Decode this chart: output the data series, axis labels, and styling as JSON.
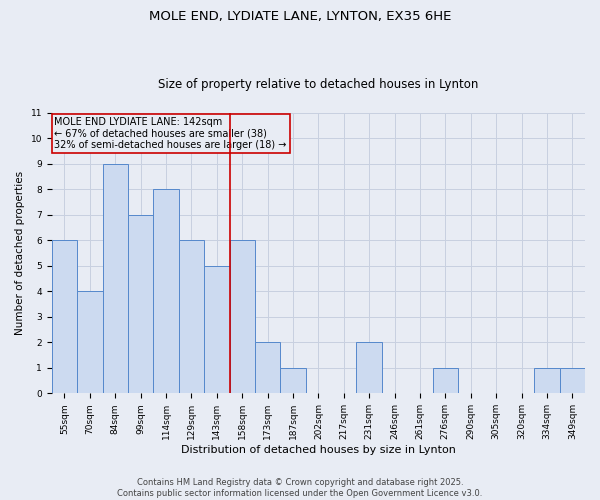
{
  "title1": "MOLE END, LYDIATE LANE, LYNTON, EX35 6HE",
  "title2": "Size of property relative to detached houses in Lynton",
  "xlabel": "Distribution of detached houses by size in Lynton",
  "ylabel": "Number of detached properties",
  "categories": [
    "55sqm",
    "70sqm",
    "84sqm",
    "99sqm",
    "114sqm",
    "129sqm",
    "143sqm",
    "158sqm",
    "173sqm",
    "187sqm",
    "202sqm",
    "217sqm",
    "231sqm",
    "246sqm",
    "261sqm",
    "276sqm",
    "290sqm",
    "305sqm",
    "320sqm",
    "334sqm",
    "349sqm"
  ],
  "values": [
    6,
    4,
    9,
    7,
    8,
    6,
    5,
    6,
    2,
    1,
    0,
    0,
    2,
    0,
    0,
    1,
    0,
    0,
    0,
    1,
    1
  ],
  "bar_color": "#ccdaf0",
  "bar_edge_color": "#5588cc",
  "vline_index": 6,
  "vline_color": "#cc0000",
  "ylim": [
    0,
    11
  ],
  "yticks": [
    0,
    1,
    2,
    3,
    4,
    5,
    6,
    7,
    8,
    9,
    10,
    11
  ],
  "annotation_title": "MOLE END LYDIATE LANE: 142sqm",
  "annotation_line2": "← 67% of detached houses are smaller (38)",
  "annotation_line3": "32% of semi-detached houses are larger (18) →",
  "annotation_box_color": "#cc0000",
  "grid_color": "#c8d0e0",
  "background_color": "#e8ecf4",
  "footer1": "Contains HM Land Registry data © Crown copyright and database right 2025.",
  "footer2": "Contains public sector information licensed under the Open Government Licence v3.0.",
  "title1_fontsize": 9.5,
  "title2_fontsize": 8.5,
  "xlabel_fontsize": 8,
  "ylabel_fontsize": 7.5,
  "tick_fontsize": 6.5,
  "annotation_fontsize": 7,
  "footer_fontsize": 6
}
